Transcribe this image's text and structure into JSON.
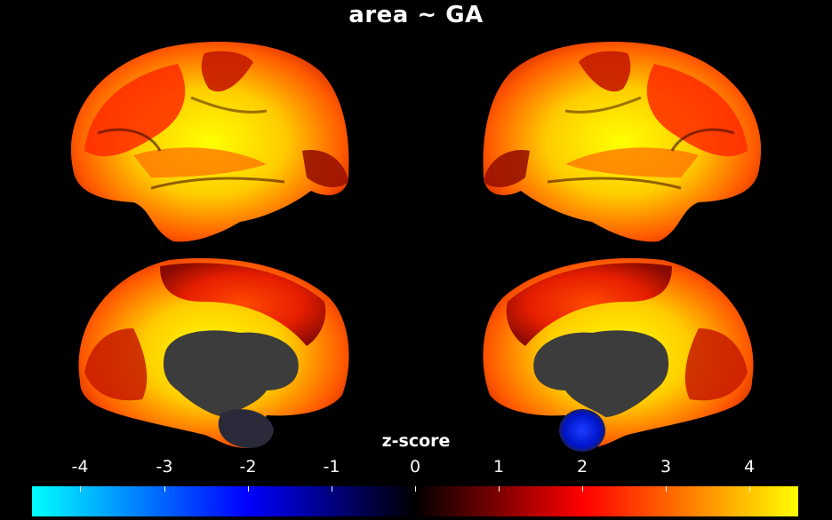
{
  "title": "area ~ GA",
  "colorbar": {
    "label": "z-score",
    "ticks": [
      "-4",
      "-3",
      "-2",
      "-1",
      "0",
      "1",
      "2",
      "3",
      "4"
    ],
    "range": [
      -4.5,
      4.5
    ],
    "colors": {
      "min": "#00ffff",
      "neg_mid": "#0000ff",
      "zero": "#000000",
      "pos_low": "#ff0000",
      "max": "#ffff00"
    }
  },
  "views": [
    "lateral-left",
    "lateral-right",
    "medial-left",
    "medial-right"
  ]
}
